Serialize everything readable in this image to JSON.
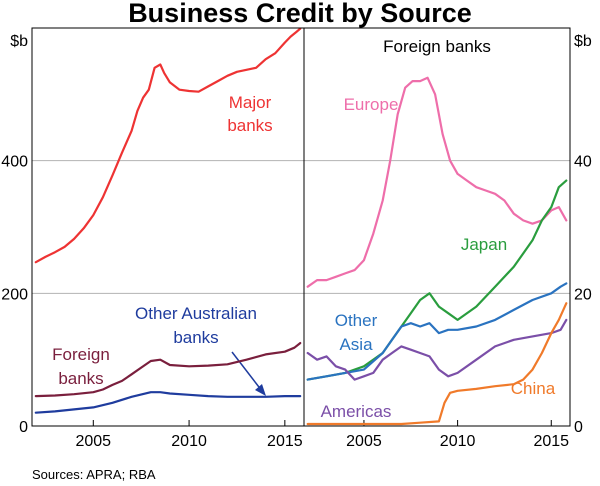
{
  "title": "Business Credit by Source",
  "source": "Sources:  APRA; RBA",
  "chart_data": [
    {
      "type": "line",
      "panel": "left",
      "title": "",
      "ylabel": "$b",
      "ylim": [
        0,
        600
      ],
      "yticks": [
        0,
        200,
        400
      ],
      "xlim": [
        2001.8,
        2016.0
      ],
      "xticks": [
        2005,
        2010,
        2015
      ],
      "grid": true,
      "series": [
        {
          "name": "Major banks",
          "label_lines": [
            "Major",
            "banks"
          ],
          "color": "#ee3333",
          "x": [
            2002,
            2002.5,
            2003,
            2003.5,
            2004,
            2004.5,
            2005,
            2005.5,
            2006,
            2006.5,
            2007,
            2007.3,
            2007.6,
            2007.9,
            2008.2,
            2008.5,
            2008.7,
            2009,
            2009.5,
            2010,
            2010.5,
            2011,
            2011.5,
            2012,
            2012.5,
            2013,
            2013.5,
            2014,
            2014.5,
            2015,
            2015.3,
            2015.6,
            2015.8
          ],
          "values": [
            247,
            255,
            262,
            270,
            282,
            298,
            318,
            345,
            378,
            412,
            445,
            475,
            495,
            507,
            540,
            545,
            532,
            518,
            507,
            505,
            504,
            512,
            520,
            528,
            534,
            537,
            540,
            553,
            562,
            578,
            587,
            594,
            599
          ]
        },
        {
          "name": "Other Australian banks",
          "label_lines": [
            "Other Australian",
            "banks"
          ],
          "color": "#1f3c9e",
          "x": [
            2002,
            2003,
            2004,
            2005,
            2006,
            2007,
            2008,
            2008.5,
            2009,
            2010,
            2011,
            2012,
            2013,
            2014,
            2015,
            2015.8
          ],
          "values": [
            20,
            22,
            25,
            28,
            35,
            44,
            51,
            51,
            49,
            47,
            45,
            44,
            44,
            44,
            45,
            45
          ]
        },
        {
          "name": "Foreign banks",
          "label_lines": [
            "Foreign",
            "banks"
          ],
          "color": "#7a1f3d",
          "x": [
            2002,
            2003,
            2004,
            2005,
            2005.5,
            2006,
            2006.5,
            2007,
            2007.5,
            2008,
            2008.5,
            2009,
            2010,
            2011,
            2012,
            2013,
            2014,
            2015,
            2015.5,
            2015.8
          ],
          "values": [
            45,
            46,
            48,
            51,
            55,
            62,
            68,
            78,
            88,
            98,
            100,
            92,
            90,
            91,
            93,
            100,
            108,
            112,
            118,
            125
          ]
        }
      ]
    },
    {
      "type": "line",
      "panel": "right",
      "title": "Foreign banks",
      "ylabel": "$b",
      "ylim": [
        0,
        60
      ],
      "yticks": [
        0,
        20,
        40
      ],
      "xlim": [
        2001.8,
        2016.0
      ],
      "xticks": [
        2005,
        2010,
        2015
      ],
      "grid": true,
      "series": [
        {
          "name": "Europe",
          "label_lines": [
            "Europe"
          ],
          "color": "#ee6eaa",
          "x": [
            2002,
            2002.5,
            2003,
            2003.5,
            2004,
            2004.5,
            2005,
            2005.5,
            2006,
            2006.4,
            2006.8,
            2007.2,
            2007.6,
            2008,
            2008.4,
            2008.8,
            2009.2,
            2009.6,
            2010,
            2010.5,
            2011,
            2011.5,
            2012,
            2012.5,
            2013,
            2013.5,
            2014,
            2014.5,
            2015,
            2015.4,
            2015.8
          ],
          "values": [
            21,
            22,
            22,
            22.5,
            23,
            23.5,
            25,
            29,
            34,
            40,
            47,
            51,
            52,
            52,
            52.5,
            50,
            44,
            40,
            38,
            37,
            36,
            35.5,
            35,
            34,
            32,
            31,
            30.5,
            31,
            32.5,
            33,
            31
          ]
        },
        {
          "name": "Japan",
          "label_lines": [
            "Japan"
          ],
          "color": "#2a9d3e",
          "x": [
            2002,
            2003,
            2004,
            2005,
            2005.5,
            2006,
            2006.5,
            2007,
            2007.5,
            2008,
            2008.5,
            2009,
            2009.5,
            2010,
            2011,
            2012,
            2013,
            2014,
            2014.5,
            2015,
            2015.4,
            2015.8
          ],
          "values": [
            7,
            7.5,
            8,
            9,
            10,
            11,
            13,
            15,
            17,
            19,
            20,
            18,
            17,
            16,
            18,
            21,
            24,
            28,
            31,
            33,
            36,
            37
          ]
        },
        {
          "name": "Other Asia",
          "label_lines": [
            "Other",
            "Asia"
          ],
          "color": "#2a73c0",
          "x": [
            2002,
            2003,
            2004,
            2005,
            2006,
            2006.5,
            2007,
            2007.5,
            2008,
            2008.5,
            2009,
            2009.5,
            2010,
            2011,
            2012,
            2013,
            2014,
            2015,
            2015.5,
            2015.8
          ],
          "values": [
            7,
            7.5,
            8,
            8.5,
            11,
            13,
            15,
            15.5,
            15,
            15.5,
            14,
            14.5,
            14.5,
            15,
            16,
            17.5,
            19,
            20,
            21,
            21.5
          ]
        },
        {
          "name": "Americas",
          "label_lines": [
            "Americas"
          ],
          "color": "#7b4fa8",
          "x": [
            2002,
            2002.5,
            2003,
            2003.5,
            2004,
            2004.5,
            2005,
            2005.5,
            2006,
            2006.5,
            2007,
            2007.5,
            2008,
            2008.5,
            2009,
            2009.5,
            2010,
            2011,
            2012,
            2013,
            2014,
            2015,
            2015.5,
            2015.8
          ],
          "values": [
            11,
            10,
            10.5,
            9,
            8.5,
            7,
            7.5,
            8,
            10,
            11,
            12,
            11.5,
            11,
            10.5,
            8.5,
            7.5,
            8,
            10,
            12,
            13,
            13.5,
            14,
            14.5,
            16
          ]
        },
        {
          "name": "China",
          "label_lines": [
            "China"
          ],
          "color": "#f07a2a",
          "x": [
            2002,
            2005,
            2007,
            2008,
            2009,
            2009.3,
            2009.6,
            2010,
            2011,
            2012,
            2013,
            2013.5,
            2014,
            2014.5,
            2015,
            2015.4,
            2015.8
          ],
          "values": [
            0.3,
            0.3,
            0.3,
            0.5,
            0.7,
            3.5,
            5,
            5.3,
            5.6,
            6,
            6.3,
            7,
            8.5,
            11,
            14,
            16,
            18.5
          ]
        }
      ]
    }
  ]
}
